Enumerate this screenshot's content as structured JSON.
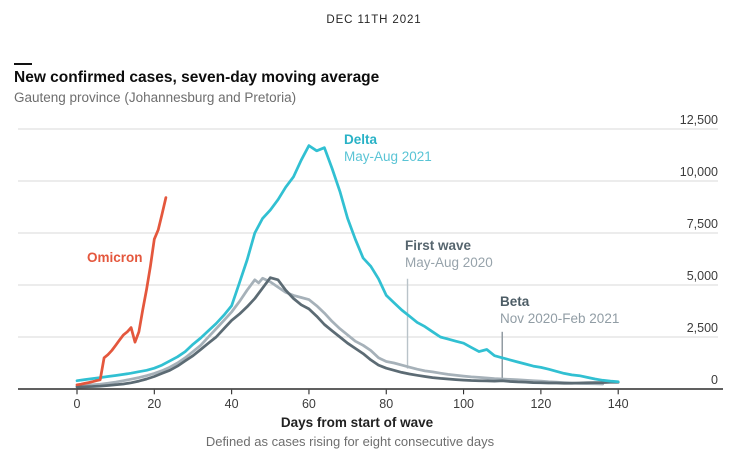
{
  "page": {
    "date": "DEC 11TH 2021",
    "title": "New confirmed cases, seven-day moving average",
    "subtitle": "Gauteng province (Johannesburg and Pretoria)"
  },
  "chart_data": {
    "type": "line",
    "title": "New confirmed cases, seven-day moving average",
    "subtitle": "Gauteng province (Johannesburg and Pretoria)",
    "xlabel": "Days from start of wave",
    "footnote": "Defined as cases rising for eight consecutive days",
    "xlim": [
      0,
      140
    ],
    "ylim": [
      0,
      12500
    ],
    "grid": "horizontal",
    "legend_position": "inline-annotations",
    "x_ticks": [
      0,
      20,
      40,
      60,
      80,
      100,
      120,
      140
    ],
    "y_tick_values": [
      0,
      2500,
      5000,
      7500,
      10000,
      12500
    ],
    "y_tick_labels": [
      "0",
      "2,500",
      "5,000",
      "7,500",
      "10,000",
      "12,500"
    ],
    "colors": {
      "grid": "#dadada",
      "axis": "#2b2b2b",
      "tick_text": "#3c3c3c"
    },
    "series": [
      {
        "name": "omicron",
        "label": "Omicron",
        "sublabel": "",
        "color": "#e4573d",
        "points": [
          [
            0,
            200
          ],
          [
            1,
            230
          ],
          [
            2,
            270
          ],
          [
            3,
            310
          ],
          [
            4,
            350
          ],
          [
            5,
            400
          ],
          [
            6,
            440
          ],
          [
            7,
            1500
          ],
          [
            8,
            1650
          ],
          [
            9,
            1850
          ],
          [
            10,
            2100
          ],
          [
            11,
            2350
          ],
          [
            12,
            2600
          ],
          [
            13,
            2750
          ],
          [
            14,
            2950
          ],
          [
            15,
            2250
          ],
          [
            16,
            2750
          ],
          [
            17,
            3800
          ],
          [
            18,
            4800
          ],
          [
            19,
            5900
          ],
          [
            20,
            7200
          ],
          [
            21,
            7650
          ],
          [
            22,
            8400
          ],
          [
            23,
            9200
          ]
        ]
      },
      {
        "name": "delta",
        "label": "Delta",
        "sublabel": "May-Aug 2021",
        "color": "#31c0d2",
        "points": [
          [
            0,
            400
          ],
          [
            2,
            450
          ],
          [
            4,
            500
          ],
          [
            6,
            550
          ],
          [
            8,
            600
          ],
          [
            10,
            650
          ],
          [
            12,
            700
          ],
          [
            14,
            760
          ],
          [
            16,
            830
          ],
          [
            18,
            900
          ],
          [
            20,
            1000
          ],
          [
            22,
            1150
          ],
          [
            24,
            1350
          ],
          [
            26,
            1550
          ],
          [
            28,
            1800
          ],
          [
            30,
            2150
          ],
          [
            32,
            2450
          ],
          [
            34,
            2800
          ],
          [
            36,
            3150
          ],
          [
            38,
            3550
          ],
          [
            40,
            4000
          ],
          [
            42,
            5100
          ],
          [
            44,
            6200
          ],
          [
            46,
            7500
          ],
          [
            48,
            8200
          ],
          [
            50,
            8600
          ],
          [
            52,
            9100
          ],
          [
            54,
            9700
          ],
          [
            56,
            10200
          ],
          [
            58,
            11000
          ],
          [
            60,
            11700
          ],
          [
            62,
            11450
          ],
          [
            64,
            11600
          ],
          [
            66,
            10600
          ],
          [
            68,
            9500
          ],
          [
            70,
            8200
          ],
          [
            72,
            7200
          ],
          [
            74,
            6300
          ],
          [
            76,
            5900
          ],
          [
            78,
            5300
          ],
          [
            80,
            4500
          ],
          [
            82,
            4150
          ],
          [
            84,
            3800
          ],
          [
            86,
            3500
          ],
          [
            88,
            3200
          ],
          [
            90,
            3000
          ],
          [
            92,
            2750
          ],
          [
            94,
            2500
          ],
          [
            96,
            2400
          ],
          [
            98,
            2300
          ],
          [
            100,
            2200
          ],
          [
            102,
            2000
          ],
          [
            104,
            1800
          ],
          [
            106,
            1900
          ],
          [
            108,
            1600
          ],
          [
            110,
            1500
          ],
          [
            112,
            1400
          ],
          [
            114,
            1300
          ],
          [
            116,
            1200
          ],
          [
            118,
            1100
          ],
          [
            120,
            1040
          ],
          [
            122,
            950
          ],
          [
            124,
            850
          ],
          [
            126,
            750
          ],
          [
            128,
            680
          ],
          [
            130,
            640
          ],
          [
            132,
            560
          ],
          [
            134,
            480
          ],
          [
            136,
            420
          ],
          [
            138,
            380
          ],
          [
            140,
            350
          ]
        ]
      },
      {
        "name": "first_wave",
        "label": "First wave",
        "sublabel": "May-Aug 2020",
        "color": "#a6b1b9",
        "points": [
          [
            0,
            150
          ],
          [
            2,
            170
          ],
          [
            4,
            200
          ],
          [
            6,
            230
          ],
          [
            8,
            280
          ],
          [
            10,
            330
          ],
          [
            12,
            400
          ],
          [
            14,
            470
          ],
          [
            16,
            550
          ],
          [
            18,
            640
          ],
          [
            20,
            750
          ],
          [
            22,
            880
          ],
          [
            24,
            1050
          ],
          [
            26,
            1250
          ],
          [
            28,
            1500
          ],
          [
            30,
            1800
          ],
          [
            32,
            2100
          ],
          [
            34,
            2500
          ],
          [
            36,
            2900
          ],
          [
            38,
            3300
          ],
          [
            40,
            3700
          ],
          [
            42,
            4200
          ],
          [
            44,
            4750
          ],
          [
            46,
            5250
          ],
          [
            47,
            5100
          ],
          [
            48,
            5320
          ],
          [
            50,
            5150
          ],
          [
            52,
            4900
          ],
          [
            54,
            4650
          ],
          [
            56,
            4500
          ],
          [
            58,
            4400
          ],
          [
            60,
            4300
          ],
          [
            62,
            4000
          ],
          [
            64,
            3650
          ],
          [
            66,
            3250
          ],
          [
            68,
            2900
          ],
          [
            70,
            2600
          ],
          [
            72,
            2300
          ],
          [
            74,
            2100
          ],
          [
            76,
            1850
          ],
          [
            78,
            1500
          ],
          [
            80,
            1320
          ],
          [
            82,
            1250
          ],
          [
            84,
            1150
          ],
          [
            86,
            1050
          ],
          [
            88,
            950
          ],
          [
            90,
            870
          ],
          [
            92,
            820
          ],
          [
            94,
            760
          ],
          [
            96,
            700
          ],
          [
            98,
            660
          ],
          [
            100,
            620
          ],
          [
            102,
            580
          ],
          [
            104,
            560
          ],
          [
            106,
            530
          ],
          [
            108,
            500
          ],
          [
            110,
            480
          ],
          [
            112,
            460
          ],
          [
            114,
            440
          ],
          [
            116,
            420
          ],
          [
            118,
            400
          ],
          [
            120,
            380
          ],
          [
            122,
            350
          ],
          [
            124,
            330
          ],
          [
            126,
            310
          ],
          [
            128,
            290
          ],
          [
            130,
            270
          ],
          [
            132,
            260
          ],
          [
            134,
            250
          ],
          [
            136,
            240
          ]
        ]
      },
      {
        "name": "beta",
        "label": "Beta",
        "sublabel": "Nov 2020-Feb 2021",
        "color": "#5c6b74",
        "points": [
          [
            0,
            100
          ],
          [
            2,
            110
          ],
          [
            4,
            120
          ],
          [
            6,
            140
          ],
          [
            8,
            170
          ],
          [
            10,
            200
          ],
          [
            12,
            240
          ],
          [
            14,
            300
          ],
          [
            16,
            380
          ],
          [
            18,
            480
          ],
          [
            20,
            600
          ],
          [
            22,
            750
          ],
          [
            24,
            900
          ],
          [
            26,
            1100
          ],
          [
            28,
            1350
          ],
          [
            30,
            1600
          ],
          [
            32,
            1900
          ],
          [
            34,
            2200
          ],
          [
            36,
            2500
          ],
          [
            38,
            2900
          ],
          [
            40,
            3300
          ],
          [
            42,
            3600
          ],
          [
            44,
            3950
          ],
          [
            46,
            4350
          ],
          [
            48,
            4850
          ],
          [
            50,
            5350
          ],
          [
            52,
            5250
          ],
          [
            54,
            4750
          ],
          [
            56,
            4350
          ],
          [
            58,
            4050
          ],
          [
            60,
            3850
          ],
          [
            62,
            3500
          ],
          [
            64,
            3100
          ],
          [
            66,
            2800
          ],
          [
            68,
            2500
          ],
          [
            70,
            2200
          ],
          [
            72,
            1950
          ],
          [
            74,
            1700
          ],
          [
            76,
            1400
          ],
          [
            78,
            1150
          ],
          [
            80,
            1000
          ],
          [
            82,
            900
          ],
          [
            84,
            800
          ],
          [
            86,
            720
          ],
          [
            88,
            660
          ],
          [
            90,
            600
          ],
          [
            92,
            550
          ],
          [
            94,
            510
          ],
          [
            96,
            480
          ],
          [
            98,
            450
          ],
          [
            100,
            430
          ],
          [
            102,
            410
          ],
          [
            104,
            400
          ],
          [
            106,
            390
          ],
          [
            108,
            380
          ],
          [
            110,
            400
          ],
          [
            112,
            360
          ],
          [
            114,
            340
          ],
          [
            116,
            330
          ],
          [
            118,
            310
          ],
          [
            120,
            300
          ],
          [
            122,
            290
          ],
          [
            124,
            290
          ],
          [
            126,
            280
          ],
          [
            128,
            280
          ],
          [
            130,
            290
          ],
          [
            132,
            300
          ],
          [
            134,
            310
          ],
          [
            136,
            310
          ],
          [
            138,
            320
          ],
          [
            140,
            320
          ]
        ]
      }
    ],
    "callouts": [
      {
        "for": "First wave",
        "day": 85.5,
        "from_value": 5300,
        "to_value": 980,
        "color": "#b9c3c9"
      },
      {
        "for": "Beta",
        "day": 110,
        "from_value": 2750,
        "to_value": 420,
        "color": "#8a959c"
      }
    ]
  }
}
